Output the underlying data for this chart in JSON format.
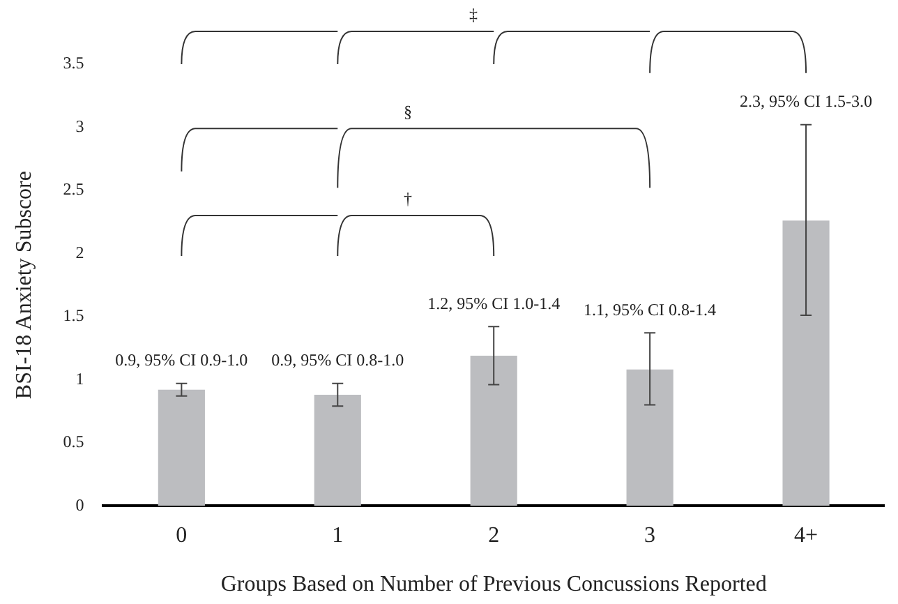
{
  "chart_data": {
    "type": "bar",
    "xlabel": "Groups Based on Number of Previous Concussions Reported",
    "ylabel": "BSI-18 Anxiety Subscore",
    "categories": [
      "0",
      "1",
      "2",
      "3",
      "4+"
    ],
    "values": [
      0.92,
      0.88,
      1.19,
      1.08,
      2.26
    ],
    "errors": [
      [
        0.87,
        0.97
      ],
      [
        0.79,
        0.97
      ],
      [
        0.96,
        1.42
      ],
      [
        0.8,
        1.37
      ],
      [
        1.51,
        3.02
      ]
    ],
    "color": "#bcbdc0",
    "ylim": [
      0,
      3.5
    ],
    "yticks": [
      0,
      0.5,
      1,
      1.5,
      2,
      2.5,
      3,
      3.5
    ],
    "grid": false,
    "legend": false,
    "annotations": [
      "‡",
      "§",
      "†",
      {
        "text": "0.9, 95% CI 0.9-1.0",
        "x": "0",
        "y": 0.97
      },
      {
        "text": "0.9, 95% CI 0.8-1.0",
        "x": "1",
        "y": 0.97
      },
      {
        "text": "1.2, 95% CI 1.0-1.4",
        "x": "2",
        "y": 1.42
      },
      {
        "text": "1.1, 95% CI 0.8-1.4",
        "x": "3",
        "y": 1.37
      },
      {
        "text": "2.3, 95% CI 1.5-3.0",
        "x": "4+",
        "y": 3.02
      }
    ]
  }
}
